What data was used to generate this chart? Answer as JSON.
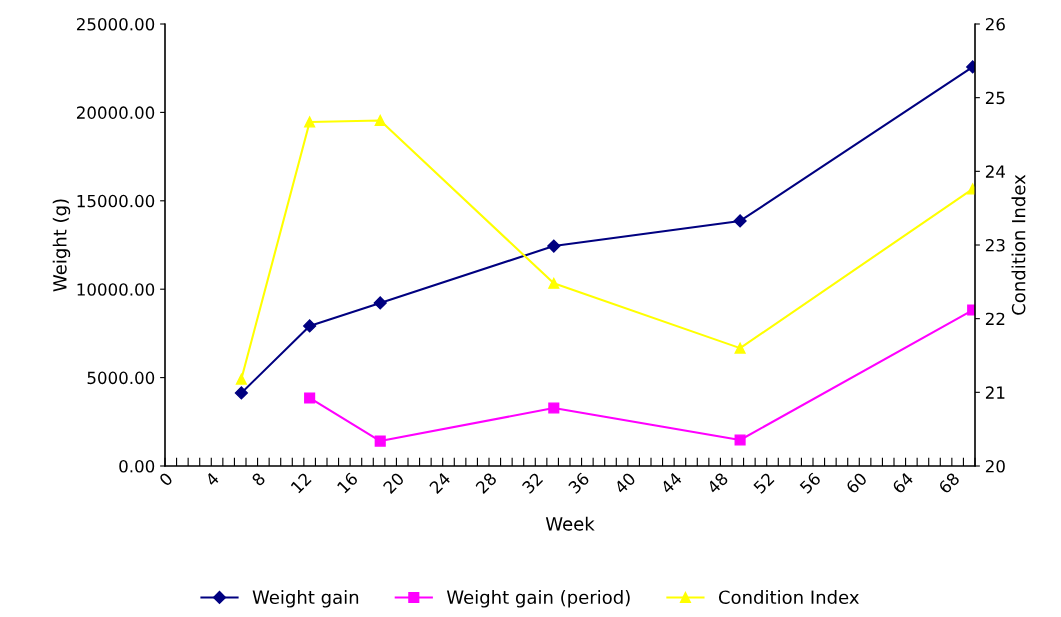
{
  "chart_data": {
    "type": "line",
    "xlabel": "Week",
    "ylabel": "Weight (g)",
    "y2label": "Condition Index",
    "x": [
      6.6,
      12.5,
      18.6,
      33.6,
      49.7,
      69.8
    ],
    "series": [
      {
        "name": "Weight gain",
        "color": "#000080",
        "marker": "diamond",
        "values": [
          4130,
          7920,
          9220,
          12440,
          13860,
          22570
        ]
      },
      {
        "name": "Weight gain (period)",
        "color": "#ff00ff",
        "marker": "square",
        "values": [
          null,
          3850,
          1410,
          3280,
          1470,
          8820
        ]
      },
      {
        "name": "Condition Index",
        "color": "#ffff00",
        "marker": "triangle",
        "axis": "y2",
        "values": [
          21.18,
          24.67,
          24.69,
          22.48,
          21.6,
          23.76
        ]
      }
    ],
    "xlim": [
      0,
      70
    ],
    "xticks": [
      0,
      {
        "value": 1,
        "label": null
      },
      {
        "value": 2,
        "label": null
      },
      {
        "value": 3,
        "label": null
      },
      4,
      {
        "value": 5,
        "label": null
      },
      {
        "value": 6,
        "label": null
      },
      {
        "value": 7,
        "label": null
      },
      8,
      {
        "value": 9,
        "label": null
      },
      {
        "value": 10,
        "label": null
      },
      {
        "value": 11,
        "label": null
      },
      12,
      {
        "value": 13,
        "label": null
      },
      {
        "value": 14,
        "label": null
      },
      {
        "value": 15,
        "label": null
      },
      16,
      {
        "value": 17,
        "label": null
      },
      {
        "value": 18,
        "label": null
      },
      {
        "value": 19,
        "label": null
      },
      20,
      {
        "value": 21,
        "label": null
      },
      {
        "value": 22,
        "label": null
      },
      {
        "value": 23,
        "label": null
      },
      24,
      {
        "value": 25,
        "label": null
      },
      {
        "value": 26,
        "label": null
      },
      {
        "value": 27,
        "label": null
      },
      28,
      {
        "value": 29,
        "label": null
      },
      {
        "value": 30,
        "label": null
      },
      {
        "value": 31,
        "label": null
      },
      32,
      {
        "value": 33,
        "label": null
      },
      {
        "value": 34,
        "label": null
      },
      {
        "value": 35,
        "label": null
      },
      36,
      {
        "value": 37,
        "label": null
      },
      {
        "value": 38,
        "label": null
      },
      {
        "value": 39,
        "label": null
      },
      40,
      {
        "value": 41,
        "label": null
      },
      {
        "value": 42,
        "label": null
      },
      {
        "value": 43,
        "label": null
      },
      44,
      {
        "value": 45,
        "label": null
      },
      {
        "value": 46,
        "label": null
      },
      {
        "value": 47,
        "label": null
      },
      48,
      {
        "value": 49,
        "label": null
      },
      {
        "value": 50,
        "label": null
      },
      {
        "value": 51,
        "label": null
      },
      52,
      {
        "value": 53,
        "label": null
      },
      {
        "value": 54,
        "label": null
      },
      {
        "value": 55,
        "label": null
      },
      56,
      {
        "value": 57,
        "label": null
      },
      {
        "value": 58,
        "label": null
      },
      {
        "value": 59,
        "label": null
      },
      60,
      {
        "value": 61,
        "label": null
      },
      {
        "value": 62,
        "label": null
      },
      {
        "value": 63,
        "label": null
      },
      64,
      {
        "value": 65,
        "label": null
      },
      {
        "value": 66,
        "label": null
      },
      {
        "value": 67,
        "label": null
      },
      68,
      {
        "value": 69,
        "label": null
      },
      {
        "value": 70,
        "label": null
      }
    ],
    "ylim": [
      0,
      25000
    ],
    "yticks": [
      {
        "value": 0,
        "label": "0.00"
      },
      {
        "value": 5000,
        "label": "5000.00"
      },
      {
        "value": 10000,
        "label": "10000.00"
      },
      {
        "value": 15000,
        "label": "15000.00"
      },
      {
        "value": 20000,
        "label": "20000.00"
      },
      {
        "value": 25000,
        "label": "25000.00"
      }
    ],
    "y2lim": [
      20,
      26
    ],
    "y2ticks": [
      20,
      21,
      22,
      23,
      24,
      25,
      26
    ],
    "grid": false,
    "legend": "bottom",
    "line_style": "solid"
  }
}
